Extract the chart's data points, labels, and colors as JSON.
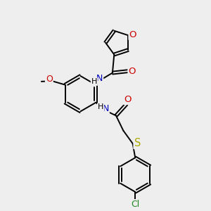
{
  "bg_color": "#eeeeee",
  "bond_color": "#000000",
  "bond_lw": 1.4,
  "dbo": 0.06,
  "atom_colors": {
    "O": "#cc0000",
    "N": "#0000bb",
    "S": "#aaaa00",
    "Cl": "#228822",
    "C": "#000000"
  },
  "fs": 8.5,
  "xlim": [
    0,
    10
  ],
  "ylim": [
    0,
    10
  ]
}
